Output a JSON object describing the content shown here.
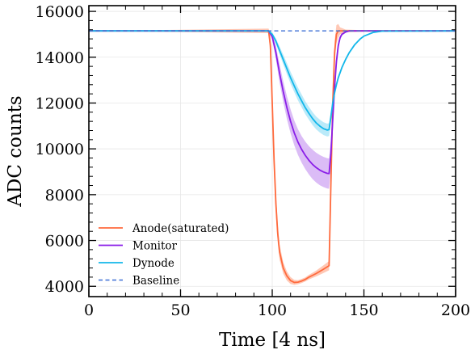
{
  "chart_data": {
    "type": "line",
    "title": "",
    "xlabel": "Time [4 ns]",
    "ylabel": "ADC counts",
    "xlim": [
      0,
      200
    ],
    "ylim": [
      3550,
      16250
    ],
    "xticks": [
      0,
      50,
      100,
      150,
      200
    ],
    "yticks": [
      4000,
      6000,
      8000,
      10000,
      12000,
      14000,
      16000
    ],
    "grid": true,
    "legend_position": "lower-left",
    "series": [
      {
        "name": "Anode(saturated)",
        "color": "#ff6a3d",
        "band_color": "#ffb59c",
        "style": "solid",
        "x": [
          0,
          98,
          99,
          100,
          101,
          102,
          103,
          104,
          106,
          108,
          110,
          112,
          114,
          116,
          118,
          120,
          124,
          128,
          131,
          132,
          133,
          134,
          135,
          136,
          137,
          140,
          150,
          200
        ],
        "y": [
          15150,
          15150,
          14500,
          12000,
          9500,
          7600,
          6300,
          5500,
          4800,
          4450,
          4250,
          4170,
          4180,
          4230,
          4300,
          4400,
          4560,
          4750,
          4900,
          8500,
          12000,
          14200,
          15000,
          15150,
          15150,
          15150,
          15150,
          15150
        ],
        "err": [
          0,
          100,
          500,
          500,
          500,
          450,
          400,
          330,
          250,
          200,
          150,
          110,
          90,
          90,
          90,
          100,
          130,
          170,
          200,
          500,
          500,
          500,
          400,
          300,
          150,
          60,
          30,
          30
        ]
      },
      {
        "name": "Monitor",
        "color": "#8a1ee8",
        "band_color": "#cfa6f3",
        "style": "solid",
        "x": [
          0,
          98,
          100,
          102,
          104,
          106,
          108,
          110,
          112,
          114,
          116,
          118,
          120,
          122,
          124,
          126,
          128,
          130,
          131,
          132,
          133,
          134,
          135,
          136,
          137,
          138,
          140,
          142,
          145,
          150,
          200
        ],
        "y": [
          15150,
          15150,
          14900,
          14200,
          13300,
          12500,
          11800,
          11200,
          10700,
          10300,
          9980,
          9720,
          9500,
          9320,
          9180,
          9070,
          8990,
          8930,
          8920,
          9800,
          11300,
          12700,
          13800,
          14500,
          14850,
          15000,
          15100,
          15150,
          15150,
          15150,
          15150
        ],
        "err": [
          0,
          30,
          150,
          300,
          400,
          450,
          500,
          520,
          540,
          560,
          580,
          600,
          620,
          640,
          650,
          660,
          660,
          660,
          660,
          600,
          500,
          400,
          300,
          200,
          100,
          60,
          30,
          20,
          20,
          20,
          20
        ]
      },
      {
        "name": "Dynode",
        "color": "#12b7ea",
        "band_color": "#a3e3f7",
        "style": "solid",
        "x": [
          0,
          98,
          100,
          102,
          104,
          106,
          108,
          110,
          112,
          114,
          116,
          118,
          120,
          122,
          124,
          126,
          128,
          130,
          131,
          132,
          133,
          134,
          135,
          136,
          138,
          140,
          142,
          145,
          148,
          150,
          155,
          160,
          200
        ],
        "y": [
          15150,
          15150,
          15000,
          14700,
          14300,
          13900,
          13500,
          13100,
          12750,
          12400,
          12100,
          11800,
          11550,
          11320,
          11130,
          10990,
          10880,
          10820,
          10840,
          11400,
          12000,
          12450,
          12800,
          13100,
          13550,
          13900,
          14200,
          14550,
          14800,
          14920,
          15080,
          15140,
          15150
        ],
        "err": [
          0,
          20,
          60,
          120,
          170,
          210,
          240,
          260,
          270,
          280,
          280,
          280,
          280,
          280,
          280,
          280,
          280,
          280,
          280,
          250,
          200,
          160,
          120,
          100,
          70,
          50,
          40,
          30,
          20,
          20,
          20,
          20,
          20
        ]
      },
      {
        "name": "Baseline",
        "color": "#3c6fd6",
        "style": "dashed",
        "x": [
          0,
          200
        ],
        "y": [
          15150,
          15150
        ]
      }
    ]
  }
}
